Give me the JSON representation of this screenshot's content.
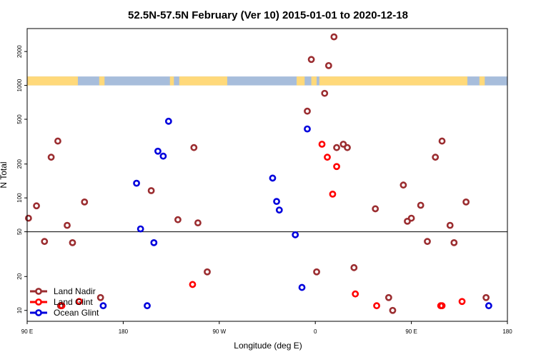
{
  "chart_data": {
    "type": "scatter",
    "title": "52.5N-57.5N February (Ver 10)   2015-01-01 to 2020-12-18",
    "xlabel": "Longitude (deg E)",
    "ylabel": "N Total",
    "y_scale": "log",
    "ylim": [
      8,
      3200
    ],
    "xlim": [
      0,
      360
    ],
    "x_origin_note": "x measured in degrees east of 90 E",
    "x_ticks": [
      {
        "value": 0,
        "label": "90 E"
      },
      {
        "value": 72,
        "label": "180"
      },
      {
        "value": 144,
        "label": "90 W"
      },
      {
        "value": 216,
        "label": "0"
      },
      {
        "value": 288,
        "label": "90 E"
      },
      {
        "value": 360,
        "label": "180"
      }
    ],
    "y_ticks": [
      {
        "value": 10,
        "label": "10"
      },
      {
        "value": 20,
        "label": "20"
      },
      {
        "value": 50,
        "label": "50"
      },
      {
        "value": 100,
        "label": "100"
      },
      {
        "value": 200,
        "label": "200"
      },
      {
        "value": 500,
        "label": "500"
      },
      {
        "value": 1000,
        "label": "1000"
      },
      {
        "value": 2000,
        "label": "2000"
      }
    ],
    "reference_line": 50,
    "map_band": {
      "y_low": 1000,
      "y_high": 1200,
      "land_color": "#ffd97a",
      "ocean_color": "#a7bddb"
    },
    "legend_position": "bottom-left",
    "series": [
      {
        "name": "Land Nadir",
        "color": "#9b2d30",
        "points": [
          [
            1,
            66
          ],
          [
            7,
            85
          ],
          [
            13,
            41
          ],
          [
            18,
            230
          ],
          [
            23,
            320
          ],
          [
            25,
            11
          ],
          [
            30,
            57
          ],
          [
            34,
            40
          ],
          [
            43,
            92
          ],
          [
            55,
            13
          ],
          [
            93,
            116
          ],
          [
            113,
            64
          ],
          [
            125,
            280
          ],
          [
            128,
            60
          ],
          [
            135,
            22
          ],
          [
            210,
            590
          ],
          [
            213,
            1700
          ],
          [
            217,
            22
          ],
          [
            223,
            850
          ],
          [
            226,
            1500
          ],
          [
            230,
            2700
          ],
          [
            232,
            280
          ],
          [
            237,
            300
          ],
          [
            240,
            280
          ],
          [
            245,
            24
          ],
          [
            261,
            80
          ],
          [
            271,
            13
          ],
          [
            274,
            10
          ],
          [
            282,
            130
          ],
          [
            285,
            62
          ],
          [
            288,
            66
          ],
          [
            295,
            86
          ],
          [
            300,
            41
          ],
          [
            306,
            230
          ],
          [
            311,
            320
          ],
          [
            317,
            57
          ],
          [
            320,
            40
          ],
          [
            329,
            92
          ],
          [
            344,
            13
          ]
        ]
      },
      {
        "name": "Land Glint",
        "color": "#ff0000",
        "points": [
          [
            26,
            11
          ],
          [
            39,
            12
          ],
          [
            124,
            17
          ],
          [
            221,
            300
          ],
          [
            225,
            230
          ],
          [
            229,
            108
          ],
          [
            232,
            190
          ],
          [
            246,
            14
          ],
          [
            262,
            11
          ],
          [
            310,
            11
          ],
          [
            311,
            11
          ],
          [
            326,
            12
          ]
        ]
      },
      {
        "name": "Ocean Glint",
        "color": "#0000dd",
        "points": [
          [
            57,
            11
          ],
          [
            82,
            135
          ],
          [
            85,
            53
          ],
          [
            90,
            11
          ],
          [
            95,
            40
          ],
          [
            98,
            260
          ],
          [
            102,
            235
          ],
          [
            106,
            480
          ],
          [
            184,
            150
          ],
          [
            187,
            93
          ],
          [
            189,
            78
          ],
          [
            201,
            47
          ],
          [
            206,
            16
          ],
          [
            210,
            410
          ],
          [
            346,
            11
          ]
        ]
      }
    ]
  }
}
